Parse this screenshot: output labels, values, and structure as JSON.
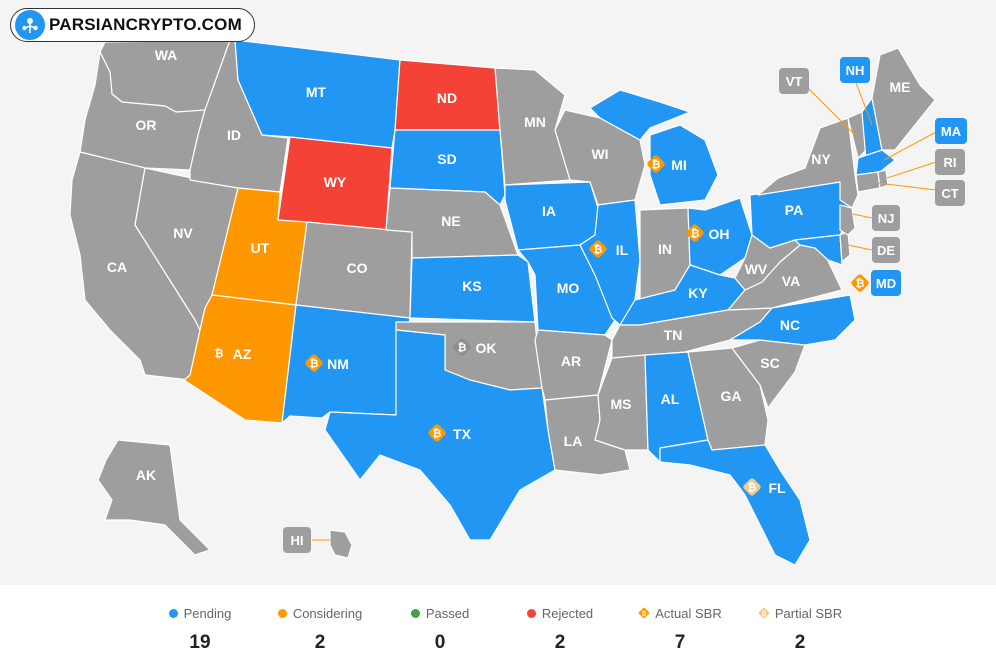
{
  "brand": {
    "name": "PARSIANCRYPTO.COM"
  },
  "colors": {
    "pending": "#2196f3",
    "considering": "#ff9800",
    "passed": "#43a047",
    "rejected": "#f44336",
    "none": "#9e9e9e",
    "actual_sbr": "#ff9800",
    "partial_sbr": "#f3c98b"
  },
  "states": {
    "WA": "WA",
    "OR": "OR",
    "CA": "CA",
    "NV": "NV",
    "ID": "ID",
    "MT": "MT",
    "WY": "WY",
    "UT": "UT",
    "AZ": "AZ",
    "CO": "CO",
    "NM": "NM",
    "ND": "ND",
    "SD": "SD",
    "NE": "NE",
    "KS": "KS",
    "OK": "OK",
    "TX": "TX",
    "MN": "MN",
    "IA": "IA",
    "MO": "MO",
    "AR": "AR",
    "LA": "LA",
    "WI": "WI",
    "IL": "IL",
    "MI": "MI",
    "IN": "IN",
    "OH": "OH",
    "KY": "KY",
    "TN": "TN",
    "MS": "MS",
    "AL": "AL",
    "GA": "GA",
    "FL": "FL",
    "SC": "SC",
    "NC": "NC",
    "VA": "VA",
    "WV": "WV",
    "PA": "PA",
    "NY": "NY",
    "ME": "ME",
    "AK": "AK",
    "HI": "HI"
  },
  "callouts": {
    "VT": "VT",
    "NH": "NH",
    "MA": "MA",
    "RI": "RI",
    "CT": "CT",
    "NJ": "NJ",
    "DE": "DE",
    "MD": "MD",
    "HI": "HI"
  },
  "legend": [
    {
      "key": "pending",
      "label": "Pending",
      "count": "19",
      "marker": "dot",
      "color": "#2196f3"
    },
    {
      "key": "considering",
      "label": "Considering",
      "count": "2",
      "marker": "dot",
      "color": "#ff9800"
    },
    {
      "key": "passed",
      "label": "Passed",
      "count": "0",
      "marker": "dot",
      "color": "#43a047"
    },
    {
      "key": "rejected",
      "label": "Rejected",
      "count": "2",
      "marker": "dot",
      "color": "#f44336"
    },
    {
      "key": "actual_sbr",
      "label": "Actual SBR",
      "count": "7",
      "marker": "bitcoin-icon",
      "color": "#ff9800"
    },
    {
      "key": "partial_sbr",
      "label": "Partial SBR",
      "count": "2",
      "marker": "bitcoin-icon",
      "color": "#f3c98b"
    }
  ]
}
